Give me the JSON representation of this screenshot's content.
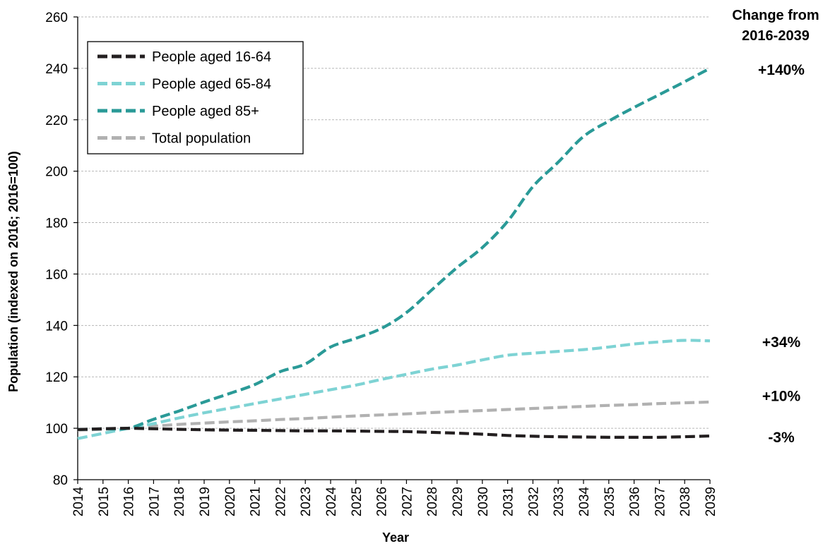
{
  "chart_data": {
    "type": "line",
    "xlabel": "Year",
    "ylabel": "Population (indexed on 2016; 2016=100)",
    "ylim": [
      80,
      260
    ],
    "yticks": [
      80,
      100,
      120,
      140,
      160,
      180,
      200,
      220,
      240,
      260
    ],
    "grid": true,
    "legend_position": "top-left",
    "x": [
      2014,
      2015,
      2016,
      2017,
      2018,
      2019,
      2020,
      2021,
      2022,
      2023,
      2024,
      2025,
      2026,
      2027,
      2028,
      2029,
      2030,
      2031,
      2032,
      2033,
      2034,
      2035,
      2036,
      2037,
      2038,
      2039
    ],
    "x_labels": [
      "2014",
      "2015",
      "2016",
      "2017",
      "2018",
      "2019",
      "2020",
      "2021",
      "2022",
      "2023",
      "2024",
      "2025",
      "2026",
      "2027",
      "2028",
      "2029",
      "2030",
      "2031",
      "2032",
      "2033",
      "2034",
      "2035",
      "2036",
      "2037",
      "2038",
      "2039"
    ],
    "series": [
      {
        "name": "People aged 16-64",
        "color": "#231f20",
        "values": [
          99.5,
          99.8,
          100,
          99.8,
          99.6,
          99.4,
          99.3,
          99.2,
          99.1,
          99.0,
          99.0,
          98.9,
          98.8,
          98.7,
          98.4,
          98.1,
          97.7,
          97.2,
          96.9,
          96.7,
          96.6,
          96.5,
          96.5,
          96.5,
          96.7,
          97.0
        ]
      },
      {
        "name": "People aged 65-84",
        "color": "#7ed3d4",
        "values": [
          96,
          98,
          100,
          101.8,
          104,
          106,
          107.8,
          109.6,
          111.4,
          113.2,
          115,
          116.8,
          119,
          121,
          123,
          124.6,
          126.6,
          128.4,
          129.2,
          129.9,
          130.6,
          131.6,
          132.8,
          133.6,
          134.2,
          134
        ]
      },
      {
        "name": "People aged 85+",
        "color": "#2a9a97",
        "values": [
          99.5,
          99.8,
          100,
          103.5,
          106.7,
          110.2,
          113.5,
          117,
          122,
          125,
          131.6,
          135,
          138.8,
          145,
          153.8,
          162.5,
          170.3,
          180.5,
          194,
          203.5,
          213.5,
          219.5,
          224.8,
          229.8,
          234.8,
          240
        ]
      },
      {
        "name": "Total population",
        "color": "#b1b1b1",
        "values": [
          99.3,
          99.6,
          100,
          100.8,
          101.5,
          102.0,
          102.5,
          102.9,
          103.4,
          103.8,
          104.3,
          104.8,
          105.2,
          105.6,
          106.1,
          106.5,
          106.9,
          107.3,
          107.7,
          108.1,
          108.5,
          108.9,
          109.2,
          109.6,
          109.9,
          110.2
        ]
      }
    ],
    "annotation_header": [
      "Change from",
      "2016-2039"
    ],
    "change_labels": [
      {
        "text": "+140%",
        "at": 240
      },
      {
        "text": "+34%",
        "at": 134
      },
      {
        "text": "+10%",
        "at": 113
      },
      {
        "text": "-3%",
        "at": 97
      }
    ]
  }
}
